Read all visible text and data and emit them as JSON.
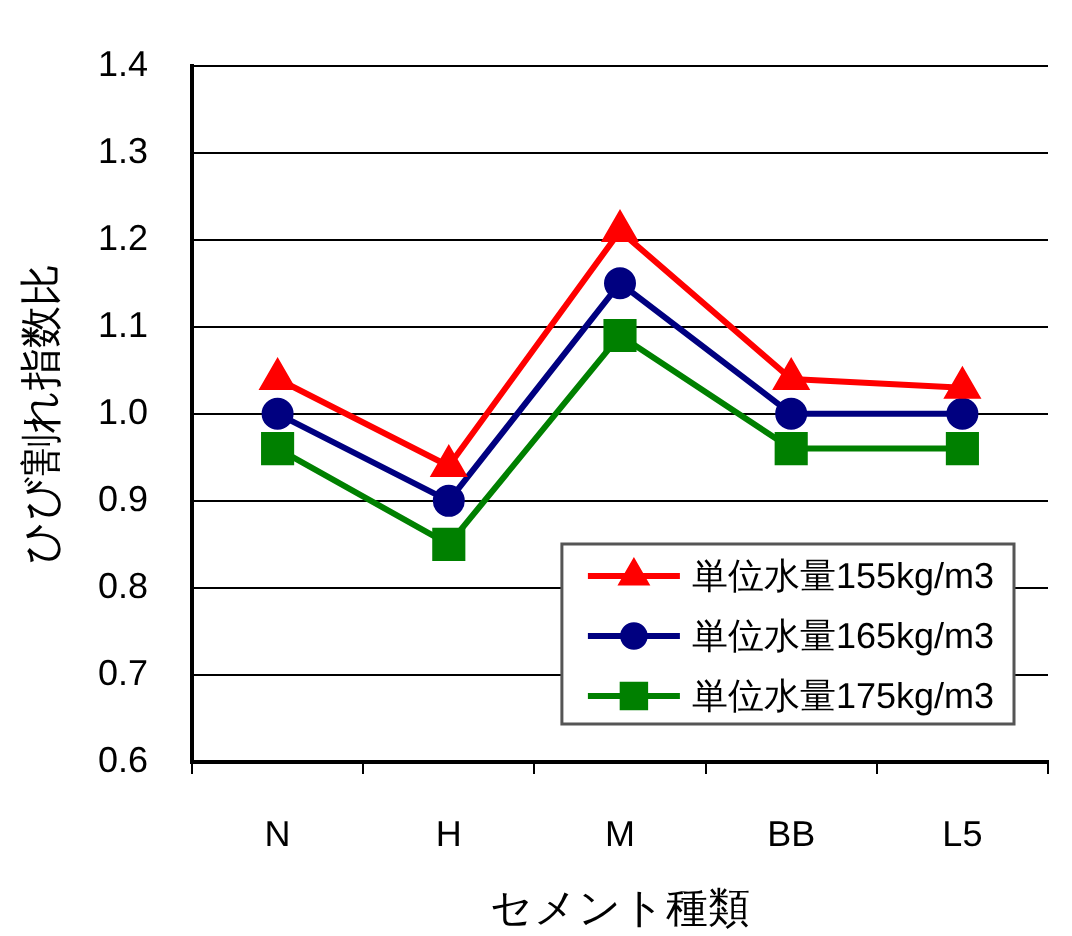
{
  "chart_data": {
    "type": "line",
    "xlabel": "セメント種類",
    "ylabel": "ひび割れ指数比",
    "categories": [
      "N",
      "H",
      "M",
      "BB",
      "L5"
    ],
    "series": [
      {
        "name": "単位水量155kg/m3",
        "color": "#ff0000",
        "marker": "triangle",
        "values": [
          1.04,
          0.94,
          1.21,
          1.04,
          1.03
        ]
      },
      {
        "name": "単位水量165kg/m3",
        "color": "#000080",
        "marker": "circle",
        "values": [
          1.0,
          0.9,
          1.15,
          1.0,
          1.0
        ]
      },
      {
        "name": "単位水量175kg/m3",
        "color": "#008000",
        "marker": "square",
        "values": [
          0.96,
          0.85,
          1.09,
          0.96,
          0.96
        ]
      }
    ],
    "ylim": [
      0.6,
      1.4
    ],
    "yticks": [
      0.6,
      0.7,
      0.8,
      0.9,
      {
        "value": 1,
        "label": "1.0"
      },
      1.1,
      1.2,
      1.3,
      1.4
    ],
    "grid": "y",
    "legend": "bottom right"
  }
}
